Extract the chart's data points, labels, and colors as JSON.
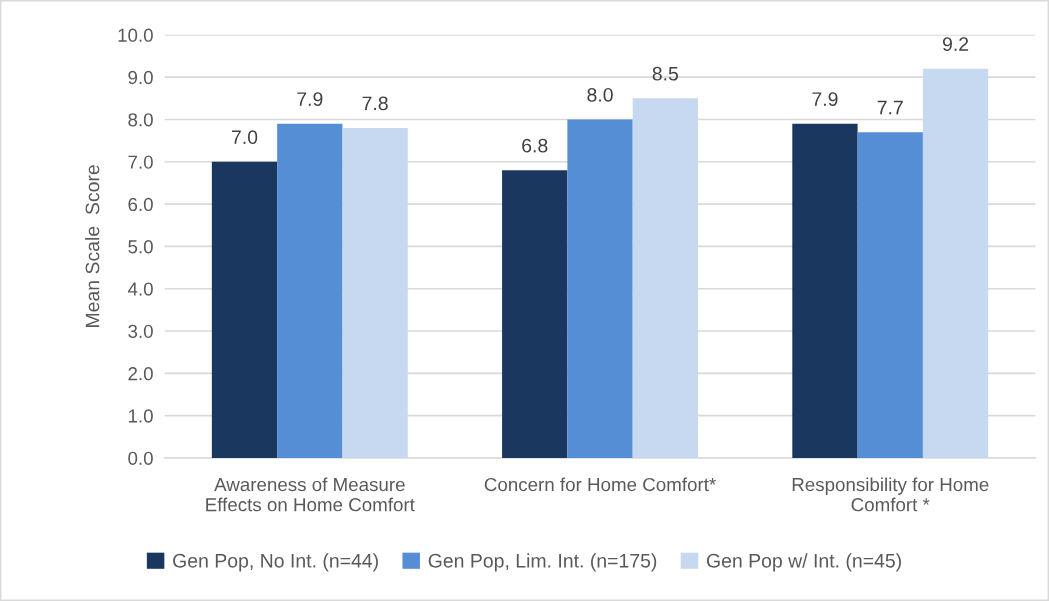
{
  "chart_data": {
    "type": "bar",
    "ylabel": "Mean Scale  Score",
    "categories": [
      "Awareness of Measure\nEffects on Home Comfort",
      "Concern for Home Comfort*",
      "Responsibility for Home\nComfort *"
    ],
    "series": [
      {
        "name": "Gen Pop, No Int. (n=44)",
        "color": "#1a3760",
        "values": [
          7.0,
          6.8,
          7.9
        ],
        "value_labels": [
          "7.0",
          "6.8",
          "7.9"
        ]
      },
      {
        "name": "Gen Pop, Lim. Int. (n=175)",
        "color": "#558ed5",
        "values": [
          7.9,
          8.0,
          7.7
        ],
        "value_labels": [
          "7.9",
          "8.0",
          "7.7"
        ]
      },
      {
        "name": "Gen Pop w/ Int. (n=45)",
        "color": "#c6d9f0",
        "values": [
          7.8,
          8.5,
          9.2
        ],
        "value_labels": [
          "7.8",
          "8.5",
          "9.2"
        ]
      }
    ],
    "ylim": [
      0,
      10
    ],
    "yticks": [
      {
        "value": 0,
        "label": "0.0"
      },
      {
        "value": 1,
        "label": "1.0"
      },
      {
        "value": 2,
        "label": "2.0"
      },
      {
        "value": 3,
        "label": "3.0"
      },
      {
        "value": 4,
        "label": "4.0"
      },
      {
        "value": 5,
        "label": "5.0"
      },
      {
        "value": 6,
        "label": "6.0"
      },
      {
        "value": 7,
        "label": "7.0"
      },
      {
        "value": 8,
        "label": "8.0"
      },
      {
        "value": 9,
        "label": "9.0"
      },
      {
        "value": 10,
        "label": "10.0"
      }
    ],
    "grid": "y",
    "legend": "bottom"
  }
}
